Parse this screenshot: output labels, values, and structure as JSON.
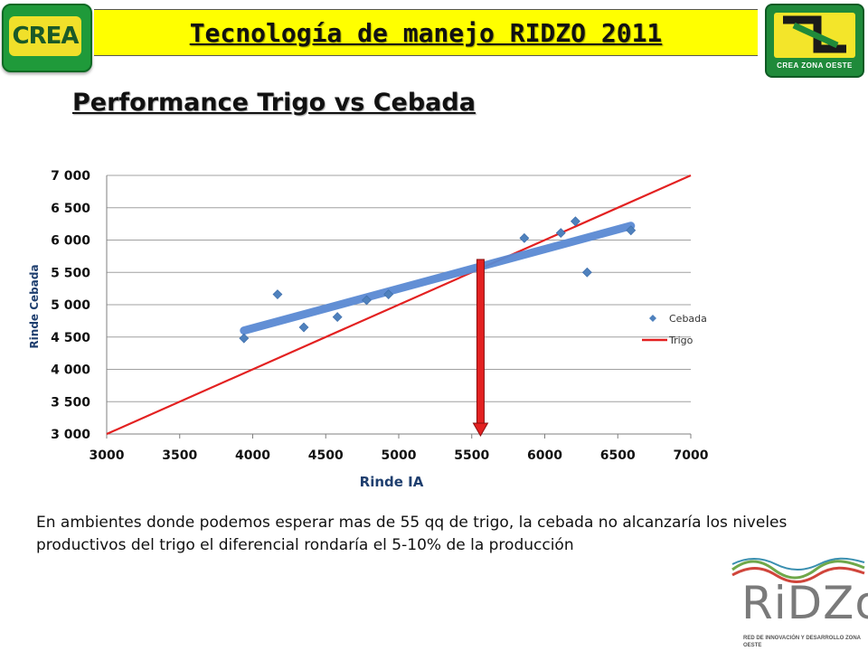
{
  "header": {
    "title": "Tecnología de manejo RIDZO 2011",
    "left_logo_text": "CREA",
    "right_logo_caption": "CREA ZONA OESTE"
  },
  "slide_title": "Performance Trigo vs Cebada",
  "chart_data": {
    "type": "scatter",
    "xlabel": "Rinde IA",
    "ylabel": "Rinde Cebada",
    "xlim": [
      3000,
      7000
    ],
    "ylim": [
      3000,
      7000
    ],
    "x_ticks": [
      "3000",
      "3500",
      "4000",
      "4500",
      "5000",
      "5500",
      "6000",
      "6500",
      "7000"
    ],
    "y_ticks": [
      "3 000",
      "3 500",
      "4 000",
      "4 500",
      "5 000",
      "5 500",
      "6 000",
      "6 500",
      "7 000"
    ],
    "grid": "horizontal",
    "legend_position": "right",
    "series": [
      {
        "name": "Cebada",
        "kind": "scatter",
        "marker": "diamond",
        "color": "#4f81bd",
        "points": [
          [
            3940,
            4480
          ],
          [
            4170,
            5160
          ],
          [
            4350,
            4650
          ],
          [
            4580,
            4810
          ],
          [
            4780,
            5070
          ],
          [
            4930,
            5160
          ],
          [
            5860,
            6030
          ],
          [
            6110,
            6110
          ],
          [
            6210,
            6290
          ],
          [
            6290,
            5500
          ],
          [
            6590,
            6150
          ]
        ]
      },
      {
        "name": "Trigo",
        "kind": "line",
        "color": "#e32121",
        "points": [
          [
            3000,
            3000
          ],
          [
            7000,
            7000
          ]
        ]
      }
    ],
    "trend": {
      "color": "#5a8ad3",
      "points": [
        [
          3940,
          4600
        ],
        [
          6590,
          6220
        ]
      ]
    },
    "marker_arrow": {
      "x": 5560,
      "from_y": 5700,
      "to_y": 3000,
      "color": "#e32121"
    },
    "colors": {
      "grid": "#a0a0a0",
      "axis": "#7f7f7f"
    }
  },
  "note": "En ambientes donde podemos esperar mas de 55 qq de trigo, la cebada no alcanzaría los niveles productivos del trigo el diferencial rondaría el 5-10% de la producción",
  "footer_logo": {
    "text": "RiDZo",
    "tagline": "RED DE INNOVACIÓN Y DESARROLLO ZONA OESTE"
  }
}
